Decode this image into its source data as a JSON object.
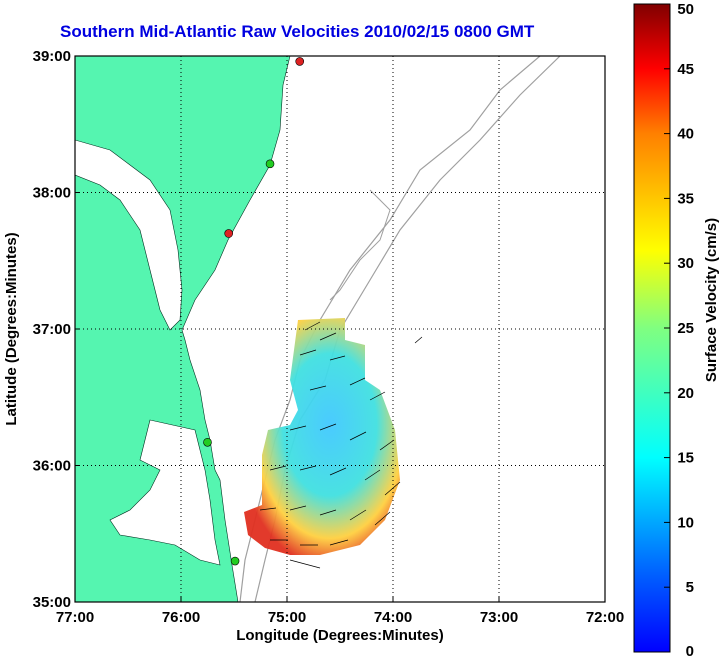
{
  "title": "Southern Mid-Atlantic Raw Velocities 2010/02/15 0800 GMT",
  "x_axis": {
    "label": "Longitude (Degrees:Minutes)",
    "ticks": [
      "77:00",
      "76:00",
      "75:00",
      "74:00",
      "73:00",
      "72:00"
    ]
  },
  "y_axis": {
    "label": "Latitude (Degrees:Minutes)",
    "ticks": [
      "39:00",
      "38:00",
      "37:00",
      "36:00",
      "35:00"
    ]
  },
  "colorbar": {
    "label": "Surface Velocity (cm/s)",
    "min": 0,
    "max": 50,
    "ticks": [
      "50",
      "45",
      "40",
      "35",
      "30",
      "25",
      "20",
      "15",
      "10",
      "5",
      "0"
    ]
  },
  "colors": {
    "land": "#55f5b0",
    "title": "#0000e0",
    "bathymetry": "#a0a0a0",
    "station_green": "#22cc22",
    "station_red": "#dd2222"
  },
  "stations": [
    {
      "lat": 38.96,
      "lon": -74.88,
      "color": "red"
    },
    {
      "lat": 38.21,
      "lon": -75.16,
      "color": "green"
    },
    {
      "lat": 37.7,
      "lon": -75.55,
      "color": "red"
    },
    {
      "lat": 36.17,
      "lon": -75.75,
      "color": "green"
    },
    {
      "lat": 35.3,
      "lon": -75.49,
      "color": "green"
    }
  ]
}
